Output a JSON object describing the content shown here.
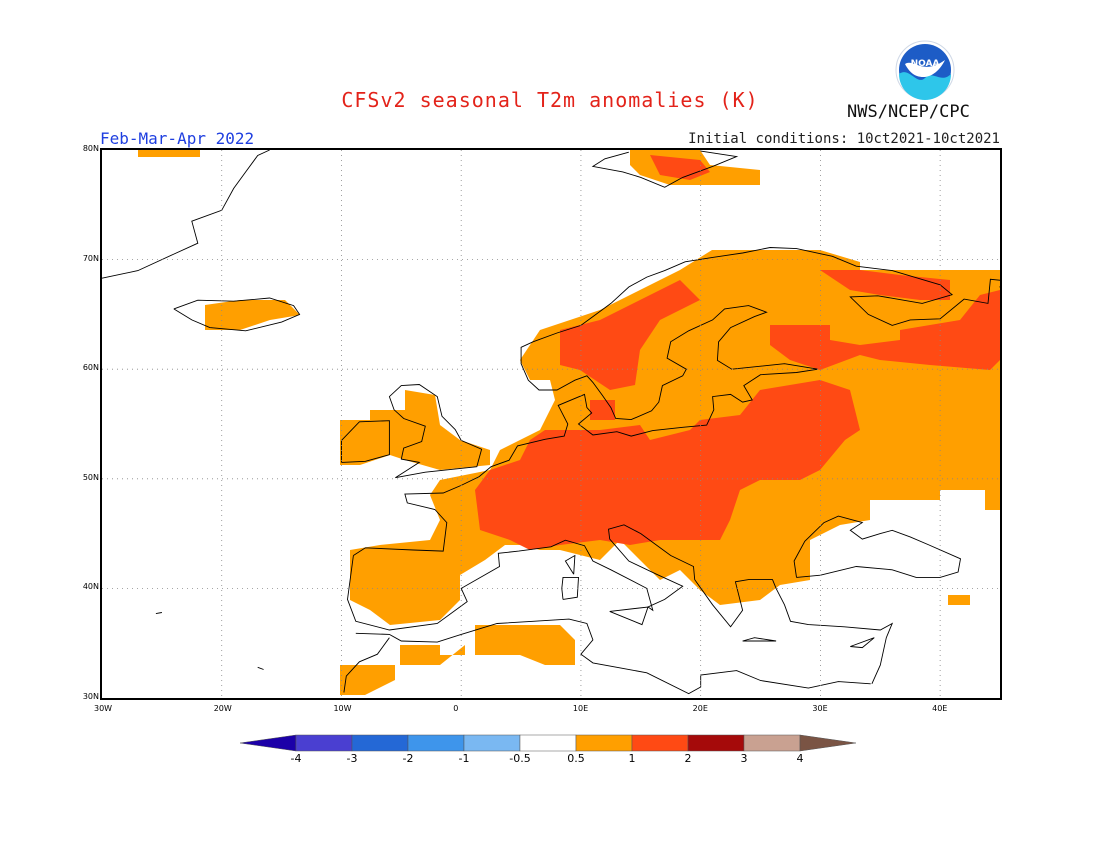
{
  "header": {
    "title": "CFSv2 seasonal T2m anomalies (K)",
    "season": "Feb-Mar-Apr 2022",
    "initial_conditions": "Initial conditions: 10ct2021-10ct2021",
    "agency": "NWS/NCEP/CPC",
    "logo_text": "NOAA"
  },
  "map": {
    "region": "Europe",
    "lon_range": [
      -30,
      45
    ],
    "lat_range": [
      30,
      80
    ],
    "lat_labels": [
      "30N",
      "40N",
      "50N",
      "60N",
      "70N",
      "80N"
    ],
    "lon_labels": [
      "30W",
      "20W",
      "10W",
      "0",
      "10E",
      "20E",
      "30E",
      "40E"
    ],
    "anomaly_summary": "Positive T2m anomalies (0.5-2 K) over most of Europe; strongest (1-2 K) over central/eastern Europe, Scandinavia and NW Russia"
  },
  "colorbar": {
    "labels": [
      "-4",
      "-3",
      "-2",
      "-1",
      "-0.5",
      "0.5",
      "1",
      "2",
      "3",
      "4"
    ],
    "colors": [
      "#1c00a8",
      "#4a3fd1",
      "#2468d6",
      "#3e95eb",
      "#7ab8f2",
      "#ffffff",
      "#ff9f00",
      "#ff4a14",
      "#a50a0a",
      "#c9a191",
      "#7a5444"
    ]
  }
}
